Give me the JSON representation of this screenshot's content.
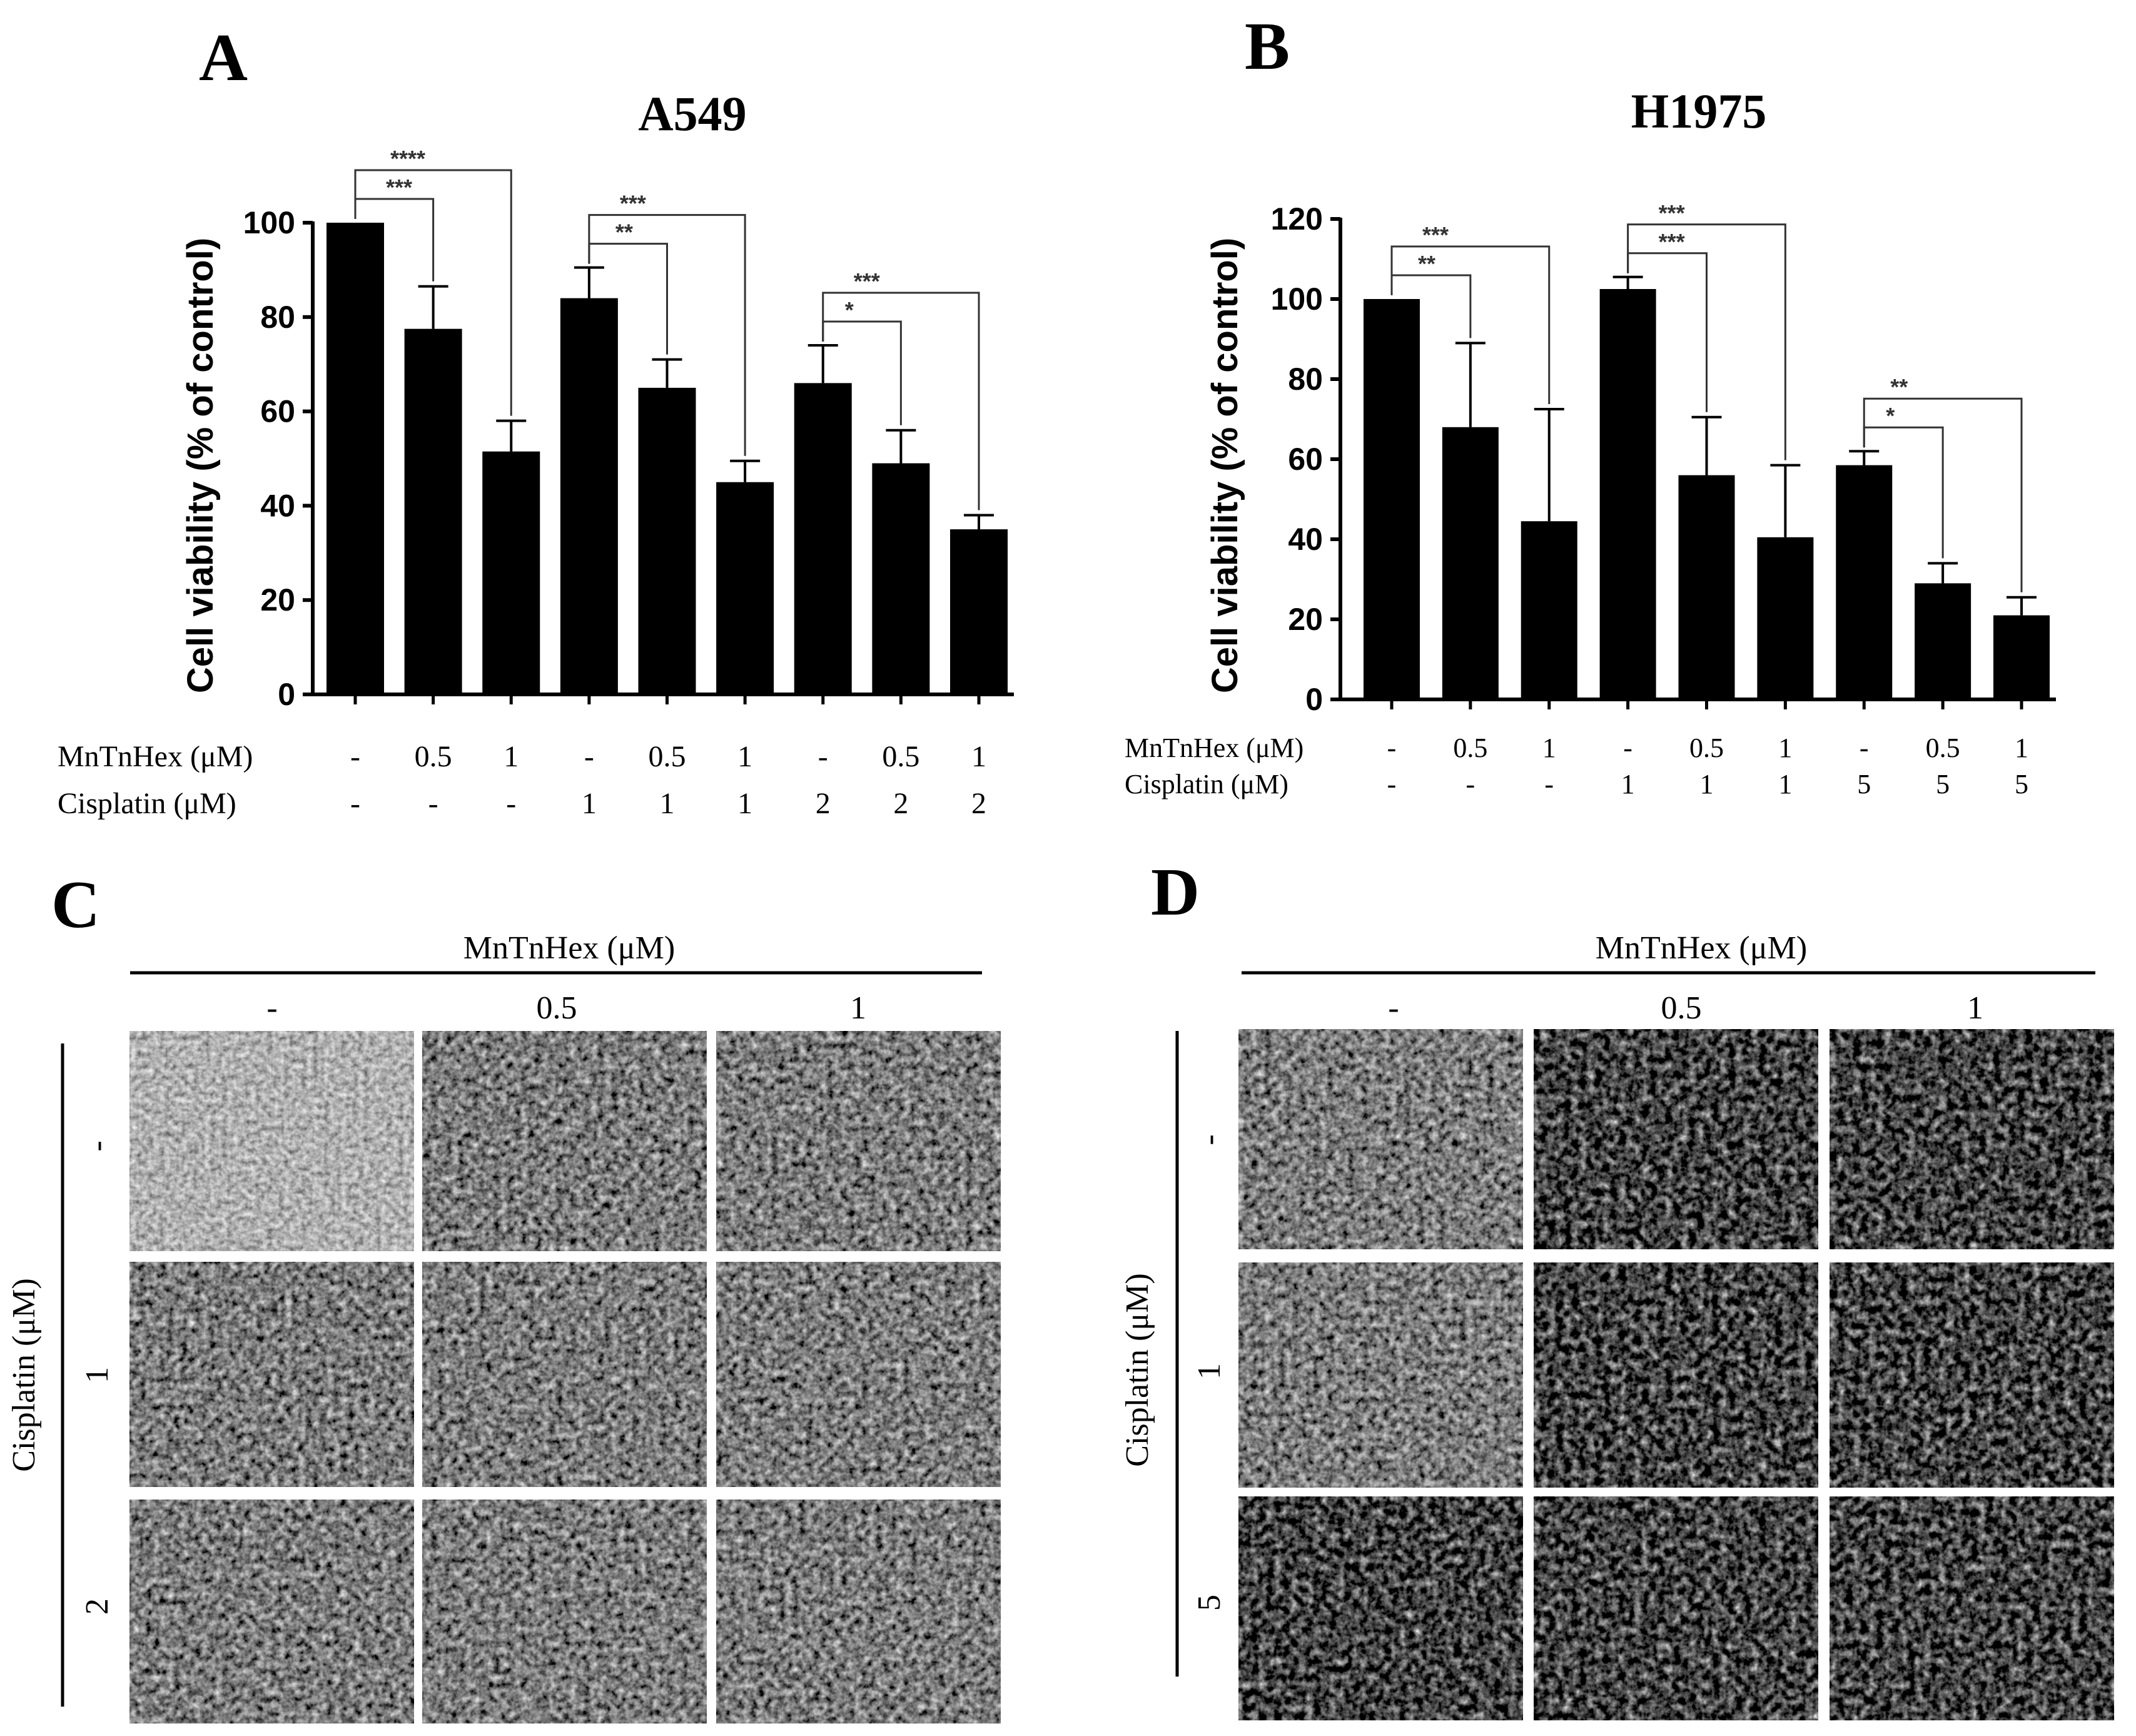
{
  "panels": {
    "A": "A",
    "B": "B",
    "C": "C",
    "D": "D"
  },
  "chart_data": [
    {
      "type": "bar",
      "title": "A549",
      "ylabel": "Cell viability (% of control)",
      "ylim": [
        0,
        100
      ],
      "yticks": [
        "0",
        "20",
        "40",
        "60",
        "80",
        "100"
      ],
      "row_labels": [
        "MnTnHex (μM)",
        "Cisplatin (μM)"
      ],
      "mntnhex": [
        "-",
        "0.5",
        "1",
        "-",
        "0.5",
        "1",
        "-",
        "0.5",
        "1"
      ],
      "cisplatin": [
        "-",
        "-",
        "-",
        "1",
        "1",
        "1",
        "2",
        "2",
        "2"
      ],
      "values": [
        100,
        77.5,
        51.5,
        84,
        65,
        45,
        66,
        49,
        35
      ],
      "errors": [
        0,
        9,
        6.5,
        6.5,
        6,
        4.5,
        8,
        7,
        3
      ],
      "significance": [
        {
          "from": 0,
          "to": 1,
          "label": "***"
        },
        {
          "from": 0,
          "to": 2,
          "label": "****"
        },
        {
          "from": 3,
          "to": 4,
          "label": "**"
        },
        {
          "from": 3,
          "to": 5,
          "label": "***"
        },
        {
          "from": 6,
          "to": 7,
          "label": "*"
        },
        {
          "from": 6,
          "to": 8,
          "label": "***"
        }
      ]
    },
    {
      "type": "bar",
      "title": "H1975",
      "ylabel": "Cell viability (%  of control)",
      "ylim": [
        0,
        120
      ],
      "yticks": [
        "0",
        "20",
        "40",
        "60",
        "80",
        "100",
        "120"
      ],
      "row_labels": [
        "MnTnHex (μM)",
        "Cisplatin (μM)"
      ],
      "mntnhex": [
        "-",
        "0.5",
        "1",
        "-",
        "0.5",
        "1",
        "-",
        "0.5",
        "1"
      ],
      "cisplatin": [
        "-",
        "-",
        "-",
        "1",
        "1",
        "1",
        "5",
        "5",
        "5"
      ],
      "values": [
        100,
        68,
        44.5,
        102.5,
        56,
        40.5,
        58.5,
        29,
        21
      ],
      "errors": [
        0,
        21,
        28,
        3,
        14.5,
        18,
        3.5,
        5,
        4.5
      ],
      "significance": [
        {
          "from": 0,
          "to": 1,
          "label": "**"
        },
        {
          "from": 0,
          "to": 2,
          "label": "***"
        },
        {
          "from": 3,
          "to": 4,
          "label": "***"
        },
        {
          "from": 3,
          "to": 5,
          "label": "***"
        },
        {
          "from": 6,
          "to": 7,
          "label": "*"
        },
        {
          "from": 6,
          "to": 8,
          "label": "**"
        }
      ]
    }
  ],
  "micrographs": [
    {
      "cell_line": "A549",
      "column_header": "MnTnHex (μM)",
      "columns": [
        "-",
        "0.5",
        "1"
      ],
      "row_header": "Cisplatin (μM)",
      "rows": [
        "-",
        "1",
        "2"
      ]
    },
    {
      "cell_line": "H1975",
      "column_header": "MnTnHex (μM)",
      "columns": [
        "-",
        "0.5",
        "1"
      ],
      "row_header": "Cisplatin (μM)",
      "rows": [
        "-",
        "1",
        "5"
      ]
    }
  ]
}
